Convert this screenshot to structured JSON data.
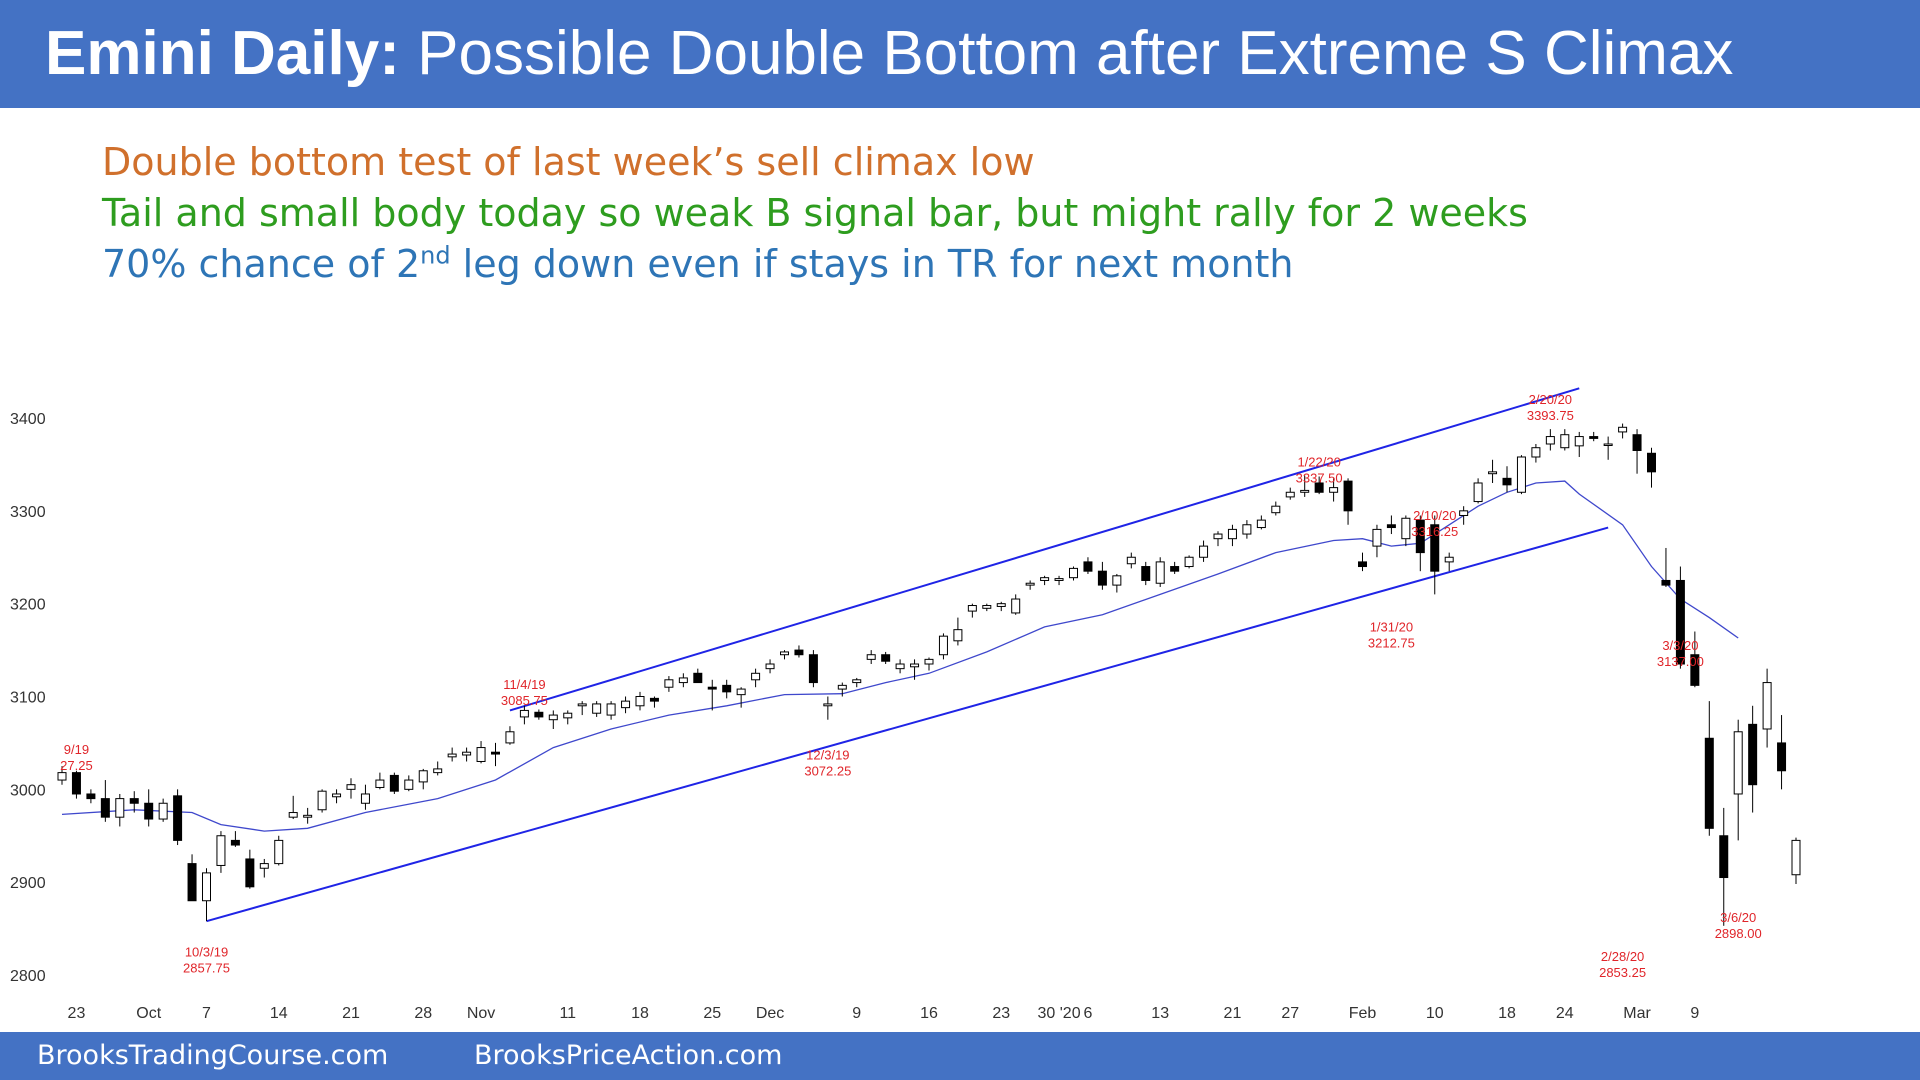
{
  "header": {
    "title_bold": "Emini Daily:",
    "title_rest": "Possible Double Bottom after Extreme S Climax",
    "background": "#4472c4"
  },
  "notes": [
    {
      "text": "Double bottom test of last week’s sell climax low",
      "color": "#d0702c"
    },
    {
      "text": "Tail and small body today so weak B signal bar, but might rally for 2 weeks",
      "color": "#2e9d1f"
    },
    {
      "text_before": "70% chance of 2",
      "sup": "nd",
      "text_after": " leg down even if stays in TR for next month",
      "color": "#2e75b6"
    }
  ],
  "footer": {
    "left": "BrooksTradingCourse.com",
    "right": "BrooksPriceAction.com"
  },
  "chart_data": {
    "type": "candlestick",
    "ylim": [
      2800,
      3420
    ],
    "y_ticks": [
      2800,
      2900,
      3000,
      3100,
      3200,
      3300,
      3400
    ],
    "x_ticks": [
      {
        "label": "23",
        "i": 1
      },
      {
        "label": "Oct",
        "i": 6
      },
      {
        "label": "7",
        "i": 10
      },
      {
        "label": "14",
        "i": 15
      },
      {
        "label": "21",
        "i": 20
      },
      {
        "label": "28",
        "i": 25
      },
      {
        "label": "Nov",
        "i": 29
      },
      {
        "label": "11",
        "i": 35
      },
      {
        "label": "18",
        "i": 40
      },
      {
        "label": "25",
        "i": 45
      },
      {
        "label": "Dec",
        "i": 49
      },
      {
        "label": "9",
        "i": 55
      },
      {
        "label": "16",
        "i": 60
      },
      {
        "label": "23",
        "i": 65
      },
      {
        "label": "30 '20",
        "i": 69
      },
      {
        "label": "6",
        "i": 71
      },
      {
        "label": "13",
        "i": 76
      },
      {
        "label": "21",
        "i": 81
      },
      {
        "label": "27",
        "i": 85
      },
      {
        "label": "Feb",
        "i": 90
      },
      {
        "label": "10",
        "i": 95
      },
      {
        "label": "18",
        "i": 100
      },
      {
        "label": "24",
        "i": 104
      },
      {
        "label": "Mar",
        "i": 109
      },
      {
        "label": "9",
        "i": 113
      }
    ],
    "candles": [
      [
        3010,
        3025,
        3005,
        3018
      ],
      [
        3018,
        3020,
        2990,
        2995
      ],
      [
        2995,
        3000,
        2985,
        2990
      ],
      [
        2990,
        3010,
        2965,
        2970
      ],
      [
        2970,
        2995,
        2960,
        2990
      ],
      [
        2990,
        2998,
        2975,
        2985
      ],
      [
        2985,
        3000,
        2960,
        2968
      ],
      [
        2968,
        2990,
        2965,
        2985
      ],
      [
        2993,
        3000,
        2940,
        2945
      ],
      [
        2920,
        2930,
        2880,
        2880
      ],
      [
        2880,
        2915,
        2858,
        2910
      ],
      [
        2918,
        2955,
        2910,
        2950
      ],
      [
        2945,
        2955,
        2938,
        2940
      ],
      [
        2925,
        2935,
        2893,
        2895
      ],
      [
        2915,
        2925,
        2905,
        2920
      ],
      [
        2920,
        2950,
        2918,
        2945
      ],
      [
        2970,
        2993,
        2968,
        2975
      ],
      [
        2970,
        2980,
        2963,
        2972
      ],
      [
        2978,
        3000,
        2975,
        2998
      ],
      [
        2992,
        3000,
        2985,
        2995
      ],
      [
        3000,
        3012,
        2990,
        3005
      ],
      [
        2985,
        3005,
        2978,
        2995
      ],
      [
        3002,
        3018,
        3000,
        3010
      ],
      [
        3015,
        3018,
        2995,
        2998
      ],
      [
        3000,
        3015,
        2998,
        3010
      ],
      [
        3008,
        3022,
        3000,
        3020
      ],
      [
        3018,
        3030,
        3015,
        3022
      ],
      [
        3035,
        3045,
        3030,
        3038
      ],
      [
        3037,
        3045,
        3030,
        3040
      ],
      [
        3030,
        3052,
        3028,
        3045
      ],
      [
        3040,
        3050,
        3025,
        3038
      ],
      [
        3050,
        3068,
        3048,
        3062
      ],
      [
        3078,
        3090,
        3070,
        3085
      ],
      [
        3083,
        3086,
        3075,
        3078
      ],
      [
        3075,
        3085,
        3065,
        3080
      ],
      [
        3077,
        3085,
        3070,
        3082
      ],
      [
        3090,
        3095,
        3080,
        3092
      ],
      [
        3082,
        3095,
        3078,
        3092
      ],
      [
        3080,
        3095,
        3075,
        3092
      ],
      [
        3088,
        3100,
        3082,
        3095
      ],
      [
        3090,
        3105,
        3085,
        3100
      ],
      [
        3098,
        3100,
        3088,
        3095
      ],
      [
        3110,
        3122,
        3105,
        3118
      ],
      [
        3115,
        3125,
        3110,
        3120
      ],
      [
        3125,
        3130,
        3115,
        3115
      ],
      [
        3110,
        3118,
        3085,
        3108
      ],
      [
        3112,
        3118,
        3098,
        3105
      ],
      [
        3102,
        3110,
        3088,
        3108
      ],
      [
        3118,
        3130,
        3110,
        3125
      ],
      [
        3130,
        3140,
        3125,
        3135
      ],
      [
        3145,
        3150,
        3140,
        3148
      ],
      [
        3150,
        3155,
        3142,
        3145
      ],
      [
        3145,
        3150,
        3110,
        3115
      ],
      [
        3090,
        3100,
        3075,
        3092
      ],
      [
        3108,
        3115,
        3100,
        3112
      ],
      [
        3115,
        3120,
        3110,
        3118
      ],
      [
        3140,
        3150,
        3135,
        3145
      ],
      [
        3145,
        3148,
        3135,
        3138
      ],
      [
        3130,
        3140,
        3125,
        3135
      ],
      [
        3132,
        3140,
        3118,
        3135
      ],
      [
        3135,
        3142,
        3128,
        3140
      ],
      [
        3145,
        3168,
        3140,
        3165
      ],
      [
        3160,
        3185,
        3155,
        3172
      ],
      [
        3192,
        3200,
        3185,
        3198
      ],
      [
        3195,
        3200,
        3192,
        3198
      ],
      [
        3197,
        3202,
        3192,
        3200
      ],
      [
        3190,
        3210,
        3188,
        3205
      ],
      [
        3220,
        3225,
        3215,
        3222
      ],
      [
        3225,
        3230,
        3220,
        3228
      ],
      [
        3225,
        3230,
        3220,
        3227
      ],
      [
        3228,
        3240,
        3225,
        3238
      ],
      [
        3245,
        3250,
        3232,
        3235
      ],
      [
        3235,
        3245,
        3215,
        3220
      ],
      [
        3220,
        3232,
        3212,
        3230
      ],
      [
        3243,
        3255,
        3238,
        3250
      ],
      [
        3240,
        3245,
        3220,
        3225
      ],
      [
        3222,
        3250,
        3218,
        3245
      ],
      [
        3240,
        3245,
        3232,
        3235
      ],
      [
        3240,
        3252,
        3238,
        3250
      ],
      [
        3250,
        3268,
        3245,
        3262
      ],
      [
        3270,
        3278,
        3262,
        3275
      ],
      [
        3270,
        3285,
        3262,
        3280
      ],
      [
        3275,
        3290,
        3270,
        3285
      ],
      [
        3282,
        3295,
        3280,
        3290
      ],
      [
        3298,
        3310,
        3295,
        3305
      ],
      [
        3315,
        3325,
        3312,
        3320
      ],
      [
        3320,
        3338,
        3315,
        3322
      ],
      [
        3330,
        3337,
        3318,
        3320
      ],
      [
        3320,
        3335,
        3310,
        3325
      ],
      [
        3332,
        3335,
        3285,
        3300
      ],
      [
        3245,
        3255,
        3235,
        3240
      ],
      [
        3262,
        3285,
        3250,
        3280
      ],
      [
        3285,
        3295,
        3275,
        3282
      ],
      [
        3270,
        3295,
        3262,
        3292
      ],
      [
        3290,
        3295,
        3235,
        3255
      ],
      [
        3285,
        3295,
        3210,
        3235
      ],
      [
        3245,
        3255,
        3235,
        3250
      ],
      [
        3295,
        3305,
        3285,
        3300
      ],
      [
        3310,
        3335,
        3308,
        3330
      ],
      [
        3340,
        3355,
        3330,
        3342
      ],
      [
        3335,
        3348,
        3320,
        3328
      ],
      [
        3320,
        3360,
        3318,
        3358
      ],
      [
        3358,
        3372,
        3352,
        3368
      ],
      [
        3372,
        3388,
        3365,
        3380
      ],
      [
        3368,
        3388,
        3365,
        3382
      ],
      [
        3370,
        3385,
        3358,
        3380
      ],
      [
        3380,
        3385,
        3375,
        3378
      ],
      [
        3372,
        3380,
        3355,
        3372
      ],
      [
        3385,
        3394,
        3378,
        3390
      ],
      [
        3382,
        3388,
        3340,
        3365
      ],
      [
        3362,
        3368,
        3325,
        3342
      ],
      [
        3225,
        3260,
        3218,
        3220
      ],
      [
        3225,
        3240,
        3130,
        3135
      ],
      [
        3145,
        3170,
        3110,
        3112
      ],
      [
        3055,
        3095,
        2950,
        2958
      ],
      [
        2950,
        2980,
        2853,
        2905
      ],
      [
        2995,
        3075,
        2945,
        3062
      ],
      [
        3070,
        3090,
        2975,
        3005
      ],
      [
        3065,
        3130,
        3045,
        3115
      ],
      [
        3050,
        3080,
        3000,
        3020
      ],
      [
        2908,
        2948,
        2898,
        2945
      ]
    ],
    "ema": [
      [
        0,
        2973
      ],
      [
        5,
        2978
      ],
      [
        9,
        2975
      ],
      [
        11,
        2962
      ],
      [
        14,
        2955
      ],
      [
        17,
        2958
      ],
      [
        21,
        2975
      ],
      [
        26,
        2990
      ],
      [
        30,
        3010
      ],
      [
        34,
        3045
      ],
      [
        38,
        3065
      ],
      [
        42,
        3080
      ],
      [
        46,
        3090
      ],
      [
        50,
        3102
      ],
      [
        54,
        3103
      ],
      [
        57,
        3115
      ],
      [
        60,
        3125
      ],
      [
        64,
        3148
      ],
      [
        68,
        3175
      ],
      [
        72,
        3188
      ],
      [
        76,
        3210
      ],
      [
        80,
        3232
      ],
      [
        84,
        3255
      ],
      [
        88,
        3268
      ],
      [
        90,
        3270
      ],
      [
        92,
        3262
      ],
      [
        94,
        3265
      ],
      [
        96,
        3285
      ],
      [
        98,
        3305
      ],
      [
        100,
        3320
      ],
      [
        102,
        3330
      ],
      [
        104,
        3332
      ],
      [
        105,
        3318
      ],
      [
        108,
        3285
      ],
      [
        110,
        3240
      ],
      [
        112,
        3205
      ],
      [
        114,
        3185
      ],
      [
        116,
        3163
      ]
    ],
    "channel": {
      "upper": [
        [
          31,
          3085
        ],
        [
          105,
          3432
        ]
      ],
      "lower": [
        [
          10,
          2858
        ],
        [
          107,
          3282
        ]
      ]
    },
    "annotations": [
      {
        "i": 1,
        "p": 3038,
        "lines": [
          "9/19",
          "27.25"
        ]
      },
      {
        "i": 10,
        "p": 2820,
        "lines": [
          "10/3/19",
          "2857.75"
        ]
      },
      {
        "i": 32,
        "p": 3108,
        "lines": [
          "11/4/19",
          "3085.75"
        ]
      },
      {
        "i": 53,
        "p": 3032,
        "lines": [
          "12/3/19",
          "3072.25"
        ]
      },
      {
        "i": 87,
        "p": 3348,
        "lines": [
          "1/22/20",
          "3337.50"
        ]
      },
      {
        "i": 95,
        "p": 3290,
        "lines": [
          "2/10/20",
          "3316.25"
        ]
      },
      {
        "i": 92,
        "p": 3170,
        "lines": [
          "1/31/20",
          "3212.75"
        ]
      },
      {
        "i": 103,
        "p": 3415,
        "lines": [
          "2/20/20",
          "3393.75"
        ]
      },
      {
        "i": 112,
        "p": 3150,
        "lines": [
          "3/3/20",
          "3137.00"
        ]
      },
      {
        "i": 108,
        "p": 2815,
        "lines": [
          "2/28/20",
          "2853.25"
        ]
      },
      {
        "i": 116,
        "p": 2857,
        "lines": [
          "3/6/20",
          "2898.00"
        ]
      }
    ]
  }
}
